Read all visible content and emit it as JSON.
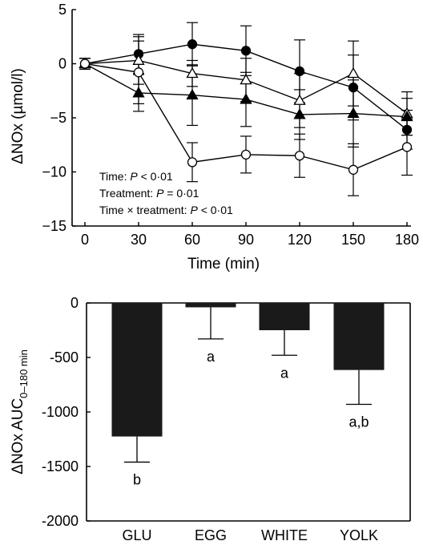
{
  "chart_data": [
    {
      "type": "line",
      "xlabel": "Time (min)",
      "ylabel": "ΔNOx (µmol/l)",
      "x": [
        0,
        30,
        60,
        90,
        120,
        150,
        180
      ],
      "xticks": [
        "0",
        "30",
        "60",
        "90",
        "120",
        "150",
        "180"
      ],
      "yticks": [
        "5",
        "0",
        "−5",
        "−10",
        "−15"
      ],
      "ylim": [
        -15,
        5
      ],
      "xlim": [
        0,
        180
      ],
      "grid": false,
      "legend": "none",
      "annotations": [
        {
          "prefix": "Time: ",
          "p": "P",
          "rest": " < 0·01"
        },
        {
          "prefix": "Treatment: ",
          "p": "P",
          "rest": " = 0·01"
        },
        {
          "prefix": "Time × treatment: ",
          "p": "P",
          "rest": " < 0·01"
        }
      ],
      "series": [
        {
          "marker": "filled-circle",
          "values": [
            0,
            0.9,
            1.8,
            1.2,
            -0.7,
            -2.2,
            -6.1
          ],
          "errors": [
            0.5,
            1.8,
            2.0,
            2.3,
            2.9,
            3.0,
            1.8
          ]
        },
        {
          "marker": "open-triangle",
          "values": [
            0,
            0.3,
            -0.9,
            -1.5,
            -3.4,
            -0.9,
            -4.6
          ],
          "errors": [
            0.5,
            2.2,
            1.2,
            2.0,
            2.5,
            3.0,
            2.0
          ]
        },
        {
          "marker": "filled-triangle",
          "values": [
            0,
            -2.7,
            -2.9,
            -3.3,
            -4.7,
            -4.6,
            -4.9
          ],
          "errors": [
            0.5,
            1.7,
            2.8,
            2.5,
            2.3,
            3.1,
            1.7
          ]
        },
        {
          "marker": "open-circle",
          "values": [
            0,
            -0.8,
            -9.1,
            -8.4,
            -8.5,
            -9.8,
            -7.7
          ],
          "errors": [
            0.5,
            2.9,
            1.8,
            1.7,
            2.0,
            2.4,
            2.6
          ]
        }
      ]
    },
    {
      "type": "bar",
      "xlabel": "",
      "ylabel": "ΔNOx AUC",
      "ylabel_sub": "0–180 min",
      "categories": [
        "GLU",
        "EGG",
        "WHITE",
        "YOLK"
      ],
      "values": [
        -1225,
        -40,
        -250,
        -615
      ],
      "errors": [
        235,
        290,
        230,
        315
      ],
      "significance": [
        "b",
        "a",
        "a",
        "a,b"
      ],
      "yticks": [
        "0",
        "-500",
        "-1000",
        "-1500",
        "-2000"
      ],
      "ylim": [
        -2000,
        0
      ],
      "bar_color": "#1a1a1a",
      "grid": false
    }
  ]
}
